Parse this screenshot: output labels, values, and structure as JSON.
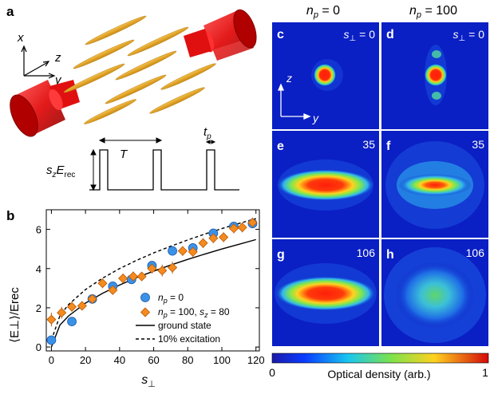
{
  "panels": {
    "a": "a",
    "b": "b",
    "c": "c",
    "d": "d",
    "e": "e",
    "f": "f",
    "g": "g",
    "h": "h"
  },
  "schematic": {
    "axis_x": "x",
    "axis_y": "y",
    "axis_z": "z",
    "pulse_period": "T",
    "pulse_width_t": "t",
    "pulse_width_sub": "p",
    "amplitude_s": "s",
    "amplitude_sub": "z",
    "amplitude_E": "E",
    "amplitude_E_sub": "rec"
  },
  "images": {
    "col_left_label": "n",
    "col_left_sub": "p",
    "col_left_value": " = 0",
    "col_right_label": "n",
    "col_right_sub": "p",
    "col_right_value": " = 100",
    "s_symbol": "s",
    "s_sub": "⊥",
    "s_eq_zero": " = 0",
    "row2_value": "35",
    "row3_value": "106",
    "inset_axis_z": "z",
    "inset_axis_y": "y",
    "colorbar_min": "0",
    "colorbar_max": "1",
    "colorbar_label": "Optical density (arb.)",
    "colors": {
      "background": "#0a1fc4",
      "low": "#2fb7ef",
      "mid": "#7ee84e",
      "high": "#ffd21f",
      "peak": "#ff1e0a"
    }
  },
  "chart_data": {
    "type": "scatter",
    "xlabel_main": "s",
    "xlabel_sub": "⊥",
    "ylabel": "⟨E⊥⟩/Erec",
    "xlim": [
      -3,
      122
    ],
    "ylim": [
      -0.2,
      7
    ],
    "xticks": [
      "0",
      "20",
      "40",
      "60",
      "80",
      "100",
      "120"
    ],
    "yticks": [
      "0",
      "2",
      "4",
      "6"
    ],
    "legend_position": "lower-right",
    "series": [
      {
        "name": "n_p = 0",
        "marker": "circle",
        "color": "#3a92e8",
        "x": [
          0,
          12,
          24,
          36,
          47,
          59,
          71,
          83,
          95,
          107,
          118
        ],
        "y": [
          0.35,
          1.3,
          2.45,
          3.1,
          3.45,
          4.15,
          4.9,
          5.05,
          5.8,
          6.15,
          6.3
        ]
      },
      {
        "name": "n_p = 100, s_z = 80",
        "marker": "diamond",
        "color": "#f58a1f",
        "x": [
          0,
          6,
          12,
          18,
          24,
          30,
          36,
          42,
          48,
          53,
          59,
          65,
          71,
          77,
          83,
          89,
          95,
          101,
          107,
          112,
          118
        ],
        "y": [
          1.4,
          1.75,
          2.05,
          2.1,
          2.45,
          3.25,
          2.9,
          3.5,
          3.6,
          3.6,
          4.0,
          3.9,
          4.05,
          4.9,
          4.85,
          5.3,
          5.55,
          5.6,
          6.05,
          6.1,
          6.35
        ],
        "yerr": [
          0.35,
          0.3,
          0.25,
          0.2,
          0.2,
          0.25,
          0.2,
          0.25,
          0.25,
          0.2,
          0.25,
          0.3,
          0.3,
          0.25,
          0.25,
          0.25,
          0.25,
          0.25,
          0.25,
          0.25,
          0.25
        ]
      }
    ],
    "curves": [
      {
        "name": "ground state",
        "style": "solid",
        "x": [
          0,
          5,
          10,
          20,
          30,
          40,
          50,
          60,
          70,
          80,
          90,
          100,
          110,
          120
        ],
        "y": [
          0.0,
          1.12,
          1.58,
          2.24,
          2.74,
          3.16,
          3.54,
          3.87,
          4.18,
          4.47,
          4.74,
          5.0,
          5.24,
          5.48
        ]
      },
      {
        "name": "10% excitation",
        "style": "dashed",
        "x": [
          0,
          5,
          10,
          20,
          30,
          40,
          50,
          60,
          70,
          80,
          90,
          100,
          110,
          120
        ],
        "y": [
          0.35,
          1.6,
          2.16,
          2.93,
          3.51,
          4.0,
          4.42,
          4.8,
          5.14,
          5.46,
          5.76,
          6.04,
          6.3,
          6.55
        ]
      }
    ],
    "legend": {
      "entry1_n": "n",
      "entry1_sub": "p",
      "entry1_rest": " = 0",
      "entry2_n": "n",
      "entry2_sub": "p",
      "entry2_mid": " = 100, ",
      "entry2_s": "s",
      "entry2_ssub": "z",
      "entry2_rest": " = 80",
      "entry3": "ground state",
      "entry4": "10% excitation"
    }
  }
}
